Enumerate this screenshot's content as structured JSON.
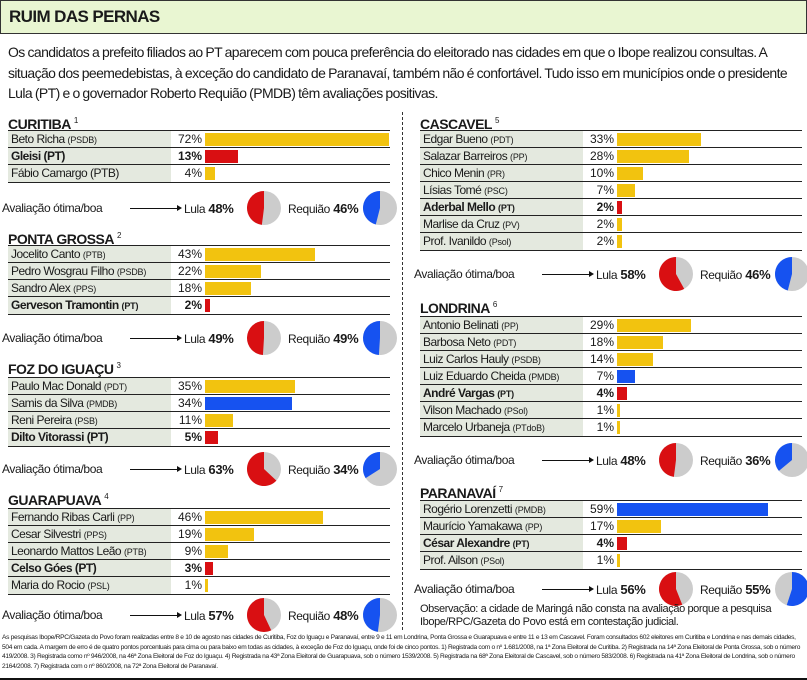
{
  "title": "RUIM DAS PERNAS",
  "intro": "Os candidatos a prefeito filiados ao PT aparecem com pouca preferência do eleitorado nas cidades em que o Ibope realizou consultas. A situação dos peemedebistas, à exceção do candidato de Paranavaí, também não é confortável. Tudo isso em municípios onde o presidente Lula (PT) e o governador Roberto Requião (PMDB) têm avaliações positivas.",
  "colors": {
    "other": "#f2c30f",
    "pt": "#d90f12",
    "pmdb": "#1652f0",
    "pie_rest": "#cccccc",
    "name_bg": "#e4e9df",
    "header_bg": "#e9f6d2"
  },
  "eval_label": "Avaliação ótima/boa",
  "lula_label": "Lula",
  "requiao_label": "Requião",
  "observation": "Observação: a cidade de Maringá não consta na avaliação porque a pesquisa Ibope/RPC/Gazeta do Povo está em contestação judicial.",
  "footnote": "As pesquisas Ibope/RPC/Gazeta do Povo foram realizadas entre 8 e 10 de agosto nas cidades de Curitiba, Foz do Iguaçu e Paranavaí, entre 9 e 11 em Londrina, Ponta Grossa e Guarapuava e entre 11 e 13 em Cascavel. Foram consultados 602 eleitores em Curitiba e Londrina e nas demais cidades, 504 em cada. A margem de erro é de quatro pontos porcentuais para cima ou para baixo em todas as cidades, à exceção de Foz do Iguaçu, onde foi de cinco pontos. 1) Registrada com o nº 1.681/2008, na 1ª Zona Eleitoral de Curitiba. 2) Registrada na 14ª Zona Eleitoral de Ponta Grossa, sob o número 419/2008. 3) Registrada como nº 946/2008, na 46ª Zona Eleitoral de Foz do Iguaçu. 4) Registrada na 43ª Zona Eleitoral de Guarapuava, sob o número 1539/2008. 5) Registrada na 68ª Zona Eleitoral de Cascavel, sob o número 583/2008. 6) Registrada na 41ª Zona Eleitoral de Londrina, sob o número 2164/2008. 7) Registrada com o nº 860/2008, na 72ª Zona Eleitoral de Paranavaí.",
  "chart_data": [
    {
      "type": "bar",
      "title": "CURITIBA",
      "note": "1",
      "unit": "%",
      "candidates": [
        {
          "name": "Beto Richa",
          "party": "(PSDB)",
          "value": 72,
          "group": "other"
        },
        {
          "name": "Gleisi (PT)",
          "party": "",
          "value": 13,
          "group": "pt"
        },
        {
          "name": "Fábio Camargo (PTB)",
          "party": "",
          "value": 4,
          "group": "other"
        }
      ],
      "lula": 48,
      "requiao": 46
    },
    {
      "type": "bar",
      "title": "PONTA GROSSA",
      "note": "2",
      "unit": "%",
      "candidates": [
        {
          "name": "Jocelito Canto",
          "party": "(PTB)",
          "value": 43,
          "group": "other"
        },
        {
          "name": "Pedro Wosgrau Filho",
          "party": "(PSDB)",
          "value": 22,
          "group": "other"
        },
        {
          "name": "Sandro Alex",
          "party": "(PPS)",
          "value": 18,
          "group": "other"
        },
        {
          "name": "Gerveson Tramontin",
          "party": "(PT)",
          "value": 2,
          "group": "pt"
        }
      ],
      "lula": 49,
      "requiao": 49
    },
    {
      "type": "bar",
      "title": "FOZ DO IGUAÇU",
      "note": "3",
      "unit": "%",
      "candidates": [
        {
          "name": "Paulo Mac Donald",
          "party": "(PDT)",
          "value": 35,
          "group": "other"
        },
        {
          "name": "Samis da Silva",
          "party": "(PMDB)",
          "value": 34,
          "group": "pmdb"
        },
        {
          "name": "Reni Pereira",
          "party": "(PSB)",
          "value": 11,
          "group": "other"
        },
        {
          "name": "Dilto Vitorassi (PT)",
          "party": "",
          "value": 5,
          "group": "pt"
        }
      ],
      "lula": 63,
      "requiao": 34
    },
    {
      "type": "bar",
      "title": "GUARAPUAVA",
      "note": "4",
      "unit": "%",
      "candidates": [
        {
          "name": "Fernando Ribas Carli",
          "party": "(PP)",
          "value": 46,
          "group": "other"
        },
        {
          "name": "Cesar Silvestri",
          "party": "(PPS)",
          "value": 19,
          "group": "other"
        },
        {
          "name": "Leonardo Mattos Leão",
          "party": "(PTB)",
          "value": 9,
          "group": "other"
        },
        {
          "name": "Celso Góes (PT)",
          "party": "",
          "value": 3,
          "group": "pt"
        },
        {
          "name": "Maria do Rocio",
          "party": "(PSL)",
          "value": 1,
          "group": "other"
        }
      ],
      "lula": 57,
      "requiao": 48
    },
    {
      "type": "bar",
      "title": "CASCAVEL",
      "note": "5",
      "unit": "%",
      "candidates": [
        {
          "name": "Edgar Bueno",
          "party": "(PDT)",
          "value": 33,
          "group": "other"
        },
        {
          "name": "Salazar Barreiros",
          "party": "(PP)",
          "value": 28,
          "group": "other"
        },
        {
          "name": "Chico Menin",
          "party": "(PR)",
          "value": 10,
          "group": "other"
        },
        {
          "name": "Lísias Tomé",
          "party": "(PSC)",
          "value": 7,
          "group": "other"
        },
        {
          "name": "Aderbal Mello",
          "party": "(PT)",
          "value": 2,
          "group": "pt"
        },
        {
          "name": "Marlise da Cruz",
          "party": "(PV)",
          "value": 2,
          "group": "other"
        },
        {
          "name": "Prof. Ivanildo",
          "party": "(Psol)",
          "value": 2,
          "group": "other"
        }
      ],
      "lula": 58,
      "requiao": 46
    },
    {
      "type": "bar",
      "title": "LONDRINA",
      "note": "6",
      "unit": "%",
      "candidates": [
        {
          "name": "Antonio Belinati",
          "party": "(PP)",
          "value": 29,
          "group": "other"
        },
        {
          "name": "Barbosa Neto",
          "party": "(PDT)",
          "value": 18,
          "group": "other"
        },
        {
          "name": "Luiz Carlos Hauly",
          "party": "(PSDB)",
          "value": 14,
          "group": "other"
        },
        {
          "name": "Luiz Eduardo Cheida",
          "party": "(PMDB)",
          "value": 7,
          "group": "pmdb"
        },
        {
          "name": "André Vargas",
          "party": "(PT)",
          "value": 4,
          "group": "pt"
        },
        {
          "name": "Vilson Machado",
          "party": "(PSol)",
          "value": 1,
          "group": "other"
        },
        {
          "name": "Marcelo Urbaneja",
          "party": "(PTdoB)",
          "value": 1,
          "group": "other"
        }
      ],
      "lula": 48,
      "requiao": 36
    },
    {
      "type": "bar",
      "title": "PARANAVAÍ",
      "note": "7",
      "unit": "%",
      "candidates": [
        {
          "name": "Rogério Lorenzetti",
          "party": "(PMDB)",
          "value": 59,
          "group": "pmdb"
        },
        {
          "name": "Maurício Yamakawa",
          "party": "(PP)",
          "value": 17,
          "group": "other"
        },
        {
          "name": "César Alexandre",
          "party": "(PT)",
          "value": 4,
          "group": "pt"
        },
        {
          "name": "Prof. Ailson",
          "party": "(PSol)",
          "value": 1,
          "group": "other"
        }
      ],
      "lula": 56,
      "requiao": 55
    }
  ]
}
